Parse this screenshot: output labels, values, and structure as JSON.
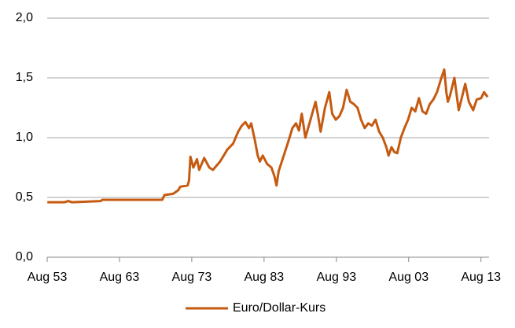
{
  "chart_data": {
    "type": "line",
    "x": [
      1953.6,
      1956,
      1956.5,
      1957,
      1961,
      1961.2,
      1969.5,
      1969.8,
      1971,
      1971.7,
      1972,
      1973,
      1973.2,
      1973.4,
      1973.8,
      1974.3,
      1974.6,
      1975.3,
      1976,
      1976.5,
      1977.5,
      1978.5,
      1979.3,
      1980,
      1980.5,
      1981,
      1981.5,
      1981.8,
      1982.3,
      1982.7,
      1983,
      1983.4,
      1984,
      1984.6,
      1985,
      1985.3,
      1985.6,
      1986.3,
      1987,
      1987.5,
      1988,
      1988.4,
      1988.8,
      1989.3,
      1990,
      1990.7,
      1991,
      1991.4,
      1992,
      1992.6,
      1993,
      1993.5,
      1994,
      1994.5,
      1995,
      1995.5,
      1996,
      1996.5,
      1997,
      1997.5,
      1998,
      1998.5,
      1999,
      1999.5,
      2000,
      2000.5,
      2000.8,
      2001.2,
      2001.6,
      2002,
      2002.5,
      2003,
      2003.5,
      2004,
      2004.5,
      2005,
      2005.5,
      2006,
      2006.5,
      2007,
      2007.5,
      2008,
      2008.5,
      2008.8,
      2009,
      2009.3,
      2009.9,
      2010.5,
      2011,
      2011.4,
      2011.9,
      2012.5,
      2013,
      2013.6,
      2014,
      2014.5
    ],
    "series": [
      {
        "name": "Euro/Dollar-Kurs",
        "color": "#c55a11",
        "values": [
          0.46,
          0.46,
          0.47,
          0.46,
          0.47,
          0.48,
          0.48,
          0.52,
          0.53,
          0.56,
          0.59,
          0.6,
          0.64,
          0.84,
          0.75,
          0.82,
          0.73,
          0.83,
          0.75,
          0.73,
          0.8,
          0.9,
          0.95,
          1.05,
          1.1,
          1.13,
          1.08,
          1.12,
          0.98,
          0.85,
          0.8,
          0.85,
          0.78,
          0.75,
          0.68,
          0.6,
          0.72,
          0.85,
          0.98,
          1.08,
          1.12,
          1.06,
          1.2,
          1.0,
          1.15,
          1.3,
          1.2,
          1.05,
          1.25,
          1.38,
          1.2,
          1.15,
          1.18,
          1.25,
          1.4,
          1.3,
          1.28,
          1.25,
          1.15,
          1.08,
          1.12,
          1.1,
          1.15,
          1.05,
          1.0,
          0.92,
          0.85,
          0.92,
          0.88,
          0.87,
          1.0,
          1.08,
          1.15,
          1.25,
          1.22,
          1.33,
          1.22,
          1.2,
          1.28,
          1.32,
          1.38,
          1.48,
          1.57,
          1.38,
          1.3,
          1.35,
          1.5,
          1.23,
          1.35,
          1.45,
          1.3,
          1.23,
          1.32,
          1.33,
          1.38,
          1.34
        ]
      }
    ],
    "xlim": [
      1953.58,
      2014.7
    ],
    "xticks": [
      {
        "value": 1953.58,
        "label": "Aug 53"
      },
      {
        "value": 1963.58,
        "label": "Aug 63"
      },
      {
        "value": 1973.58,
        "label": "Aug 73"
      },
      {
        "value": 1983.58,
        "label": "Aug 83"
      },
      {
        "value": 1993.58,
        "label": "Aug 93"
      },
      {
        "value": 2003.58,
        "label": "Aug 03"
      },
      {
        "value": 2013.58,
        "label": "Aug 13"
      }
    ],
    "ylim": [
      0,
      2
    ],
    "yticks": [
      {
        "value": 0,
        "label": "0,0"
      },
      {
        "value": 0.5,
        "label": "0,5"
      },
      {
        "value": 1,
        "label": "1,0"
      },
      {
        "value": 1.5,
        "label": "1,5"
      },
      {
        "value": 2,
        "label": "2,0"
      }
    ],
    "grid": true
  }
}
